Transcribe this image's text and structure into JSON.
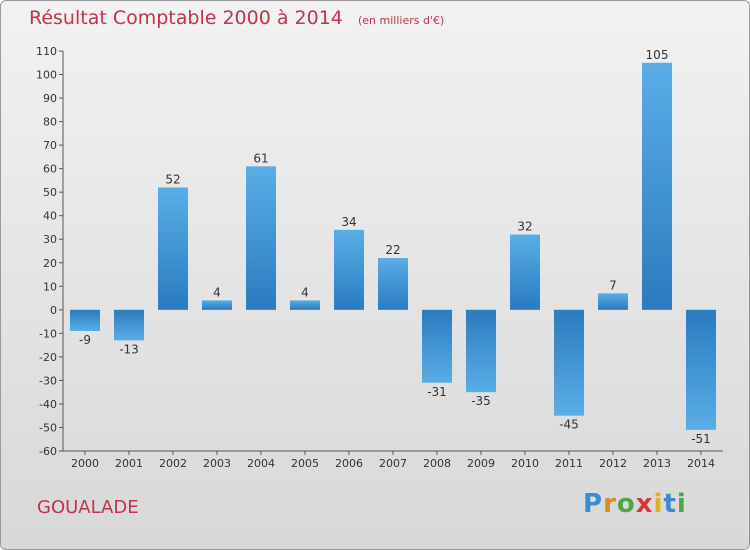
{
  "title": "Résultat Comptable 2000 à 2014",
  "subtitle": "(en milliers d'€)",
  "commune": "GOUALADE",
  "logo": {
    "p": "P",
    "r": "r",
    "o": "o",
    "x": "x",
    "i1": "i",
    "t": "t",
    "i2": "i"
  },
  "colors": {
    "title": "#c0344f",
    "bar_light": "#5aaee6",
    "bar_dark": "#2a7bbf"
  },
  "chart_data": {
    "type": "bar",
    "categories": [
      "2000",
      "2001",
      "2002",
      "2003",
      "2004",
      "2005",
      "2006",
      "2007",
      "2008",
      "2009",
      "2010",
      "2011",
      "2012",
      "2013",
      "2014"
    ],
    "values": [
      -9,
      -13,
      52,
      4,
      61,
      4,
      34,
      22,
      -31,
      -35,
      32,
      -45,
      7,
      105,
      -51
    ],
    "data_labels": [
      "-9",
      "-13",
      "52",
      "4",
      "61",
      "4",
      "34",
      "22",
      "-31",
      "-35",
      "32",
      "-45",
      "7",
      "105",
      "-51"
    ],
    "yticks": [
      "110",
      "100",
      "90",
      "80",
      "70",
      "60",
      "50",
      "40",
      "30",
      "20",
      "10",
      "0",
      "-10",
      "-20",
      "-30",
      "-40",
      "-50",
      "-60"
    ],
    "ylim": [
      -60,
      110
    ],
    "grid": false,
    "legend": "none"
  }
}
